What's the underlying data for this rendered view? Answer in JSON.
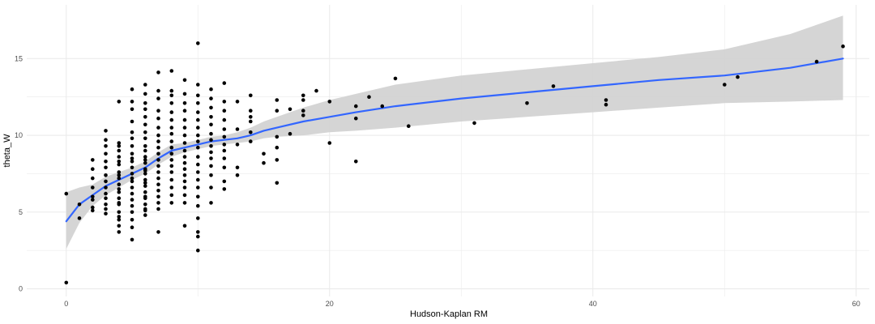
{
  "chart_data": {
    "type": "scatter",
    "xlabel": "Hudson-Kaplan RM",
    "ylabel": "theta_W",
    "xlim": [
      -3,
      61
    ],
    "ylim": [
      -0.5,
      18.5
    ],
    "x_ticks": [
      0,
      20,
      40,
      60
    ],
    "y_ticks": [
      0,
      5,
      10,
      15
    ],
    "x_tick_labels": [
      "0",
      "20",
      "40",
      "60"
    ],
    "y_tick_labels": [
      "0",
      "5",
      "10",
      "15"
    ],
    "grid": true,
    "legend": "none",
    "colors": {
      "points": "#000000",
      "smooth_line": "#3366ff",
      "confidence_band": "#d3d3d3",
      "grid": "#ebebeb"
    },
    "points": [
      [
        0,
        6.2
      ],
      [
        0,
        0.4
      ],
      [
        1,
        5.5
      ],
      [
        1,
        4.6
      ],
      [
        2,
        8.4
      ],
      [
        2,
        7.8
      ],
      [
        2,
        7.2
      ],
      [
        2,
        6.6
      ],
      [
        2,
        6.0
      ],
      [
        2,
        5.8
      ],
      [
        2,
        5.3
      ],
      [
        2,
        5.1
      ],
      [
        3,
        10.3
      ],
      [
        3,
        9.7
      ],
      [
        3,
        9.3
      ],
      [
        3,
        8.8
      ],
      [
        3,
        8.3
      ],
      [
        3,
        7.9
      ],
      [
        3,
        7.4
      ],
      [
        3,
        7.0
      ],
      [
        3,
        6.6
      ],
      [
        3,
        6.2
      ],
      [
        3,
        5.9
      ],
      [
        3,
        5.5
      ],
      [
        3,
        5.2
      ],
      [
        3,
        4.9
      ],
      [
        4,
        9.5
      ],
      [
        4,
        9.0
      ],
      [
        4,
        8.6
      ],
      [
        4,
        8.1
      ],
      [
        4,
        7.6
      ],
      [
        4,
        7.2
      ],
      [
        4,
        6.8
      ],
      [
        4,
        6.3
      ],
      [
        4,
        5.9
      ],
      [
        4,
        5.5
      ],
      [
        4,
        5.0
      ],
      [
        4,
        4.5
      ],
      [
        4,
        4.1
      ],
      [
        4,
        3.7
      ],
      [
        4,
        12.2
      ],
      [
        4,
        9.3
      ],
      [
        4,
        8.3
      ],
      [
        4,
        7.4
      ],
      [
        4,
        6.5
      ],
      [
        4,
        5.6
      ],
      [
        4,
        4.7
      ],
      [
        5,
        13.0
      ],
      [
        5,
        12.2
      ],
      [
        5,
        11.7
      ],
      [
        5,
        10.9
      ],
      [
        5,
        10.2
      ],
      [
        5,
        9.8
      ],
      [
        5,
        9.3
      ],
      [
        5,
        8.8
      ],
      [
        5,
        8.3
      ],
      [
        5,
        7.9
      ],
      [
        5,
        7.5
      ],
      [
        5,
        7.0
      ],
      [
        5,
        6.6
      ],
      [
        5,
        6.2
      ],
      [
        5,
        5.8
      ],
      [
        5,
        5.4
      ],
      [
        5,
        5.0
      ],
      [
        5,
        4.5
      ],
      [
        5,
        4.0
      ],
      [
        5,
        3.2
      ],
      [
        5,
        8.5
      ],
      [
        5,
        7.2
      ],
      [
        6,
        13.3
      ],
      [
        6,
        12.7
      ],
      [
        6,
        12.1
      ],
      [
        6,
        11.7
      ],
      [
        6,
        11.2
      ],
      [
        6,
        10.7
      ],
      [
        6,
        10.2
      ],
      [
        6,
        9.8
      ],
      [
        6,
        9.3
      ],
      [
        6,
        9.0
      ],
      [
        6,
        8.6
      ],
      [
        6,
        8.2
      ],
      [
        6,
        7.8
      ],
      [
        6,
        7.5
      ],
      [
        6,
        7.1
      ],
      [
        6,
        6.7
      ],
      [
        6,
        6.3
      ],
      [
        6,
        5.9
      ],
      [
        6,
        5.5
      ],
      [
        6,
        5.1
      ],
      [
        6,
        4.8
      ],
      [
        6,
        8.4
      ],
      [
        6,
        7.7
      ],
      [
        6,
        6.9
      ],
      [
        6,
        6.0
      ],
      [
        6,
        5.2
      ],
      [
        7,
        14.1
      ],
      [
        7,
        12.9
      ],
      [
        7,
        12.4
      ],
      [
        7,
        11.6
      ],
      [
        7,
        11.1
      ],
      [
        7,
        10.5
      ],
      [
        7,
        10.0
      ],
      [
        7,
        9.6
      ],
      [
        7,
        9.2
      ],
      [
        7,
        8.8
      ],
      [
        7,
        8.4
      ],
      [
        7,
        8.0
      ],
      [
        7,
        7.6
      ],
      [
        7,
        7.2
      ],
      [
        7,
        6.8
      ],
      [
        7,
        6.4
      ],
      [
        7,
        6.0
      ],
      [
        7,
        5.6
      ],
      [
        7,
        5.2
      ],
      [
        7,
        3.7
      ],
      [
        8,
        14.2
      ],
      [
        8,
        12.9
      ],
      [
        8,
        12.6
      ],
      [
        8,
        12.1
      ],
      [
        8,
        11.5
      ],
      [
        8,
        11.0
      ],
      [
        8,
        10.5
      ],
      [
        8,
        10.1
      ],
      [
        8,
        9.6
      ],
      [
        8,
        9.2
      ],
      [
        8,
        8.8
      ],
      [
        8,
        8.4
      ],
      [
        8,
        8.0
      ],
      [
        8,
        7.6
      ],
      [
        8,
        7.1
      ],
      [
        8,
        6.6
      ],
      [
        8,
        6.1
      ],
      [
        8,
        5.6
      ],
      [
        9,
        13.6
      ],
      [
        9,
        12.7
      ],
      [
        9,
        12.1
      ],
      [
        9,
        11.6
      ],
      [
        9,
        11.0
      ],
      [
        9,
        10.5
      ],
      [
        9,
        10.0
      ],
      [
        9,
        9.5
      ],
      [
        9,
        9.0
      ],
      [
        9,
        8.6
      ],
      [
        9,
        8.2
      ],
      [
        9,
        7.8
      ],
      [
        9,
        7.4
      ],
      [
        9,
        7.0
      ],
      [
        9,
        6.6
      ],
      [
        9,
        6.1
      ],
      [
        9,
        5.6
      ],
      [
        9,
        4.1
      ],
      [
        10,
        16.0
      ],
      [
        10,
        13.3
      ],
      [
        10,
        12.6
      ],
      [
        10,
        12.1
      ],
      [
        10,
        11.5
      ],
      [
        10,
        11.0
      ],
      [
        10,
        10.5
      ],
      [
        10,
        10.0
      ],
      [
        10,
        9.6
      ],
      [
        10,
        9.2
      ],
      [
        10,
        8.6
      ],
      [
        10,
        8.1
      ],
      [
        10,
        7.6
      ],
      [
        10,
        7.1
      ],
      [
        10,
        6.6
      ],
      [
        10,
        6.0
      ],
      [
        10,
        5.4
      ],
      [
        10,
        4.6
      ],
      [
        10,
        3.7
      ],
      [
        10,
        3.4
      ],
      [
        10,
        2.5
      ],
      [
        11,
        13.0
      ],
      [
        11,
        12.4
      ],
      [
        11,
        11.8
      ],
      [
        11,
        11.2
      ],
      [
        11,
        10.7
      ],
      [
        11,
        10.1
      ],
      [
        11,
        9.7
      ],
      [
        11,
        9.3
      ],
      [
        11,
        8.9
      ],
      [
        11,
        8.5
      ],
      [
        11,
        8.0
      ],
      [
        11,
        7.4
      ],
      [
        11,
        6.6
      ],
      [
        11,
        5.6
      ],
      [
        12,
        13.4
      ],
      [
        12,
        12.2
      ],
      [
        12,
        11.6
      ],
      [
        12,
        11.0
      ],
      [
        12,
        10.4
      ],
      [
        12,
        9.9
      ],
      [
        12,
        9.4
      ],
      [
        12,
        9.0
      ],
      [
        12,
        8.5
      ],
      [
        12,
        7.9
      ],
      [
        12,
        7.0
      ],
      [
        12,
        6.5
      ],
      [
        13,
        12.2
      ],
      [
        13,
        10.4
      ],
      [
        13,
        9.4
      ],
      [
        13,
        7.9
      ],
      [
        13,
        7.4
      ],
      [
        14,
        12.6
      ],
      [
        14,
        11.6
      ],
      [
        14,
        11.2
      ],
      [
        14,
        10.9
      ],
      [
        14,
        10.2
      ],
      [
        14,
        9.6
      ],
      [
        15,
        8.8
      ],
      [
        15,
        8.2
      ],
      [
        16,
        12.3
      ],
      [
        16,
        11.6
      ],
      [
        16,
        9.9
      ],
      [
        16,
        9.2
      ],
      [
        16,
        8.4
      ],
      [
        16,
        6.9
      ],
      [
        17,
        11.7
      ],
      [
        17,
        10.1
      ],
      [
        18,
        12.6
      ],
      [
        18,
        12.3
      ],
      [
        18,
        11.6
      ],
      [
        18,
        11.3
      ],
      [
        19,
        12.9
      ],
      [
        20,
        12.2
      ],
      [
        20,
        9.5
      ],
      [
        22,
        11.9
      ],
      [
        22,
        11.1
      ],
      [
        22,
        8.3
      ],
      [
        23,
        12.5
      ],
      [
        24,
        11.9
      ],
      [
        25,
        13.7
      ],
      [
        26,
        10.6
      ],
      [
        31,
        10.8
      ],
      [
        35,
        12.1
      ],
      [
        37,
        13.2
      ],
      [
        41,
        12.3
      ],
      [
        41,
        12.0
      ],
      [
        50,
        13.3
      ],
      [
        51,
        13.8
      ],
      [
        57,
        14.8
      ],
      [
        59,
        15.8
      ]
    ],
    "smooth_line": {
      "x": [
        0,
        1,
        2,
        3,
        4,
        5,
        6,
        7,
        8,
        9,
        10,
        11,
        12,
        13,
        14,
        15,
        16,
        18,
        20,
        22,
        25,
        30,
        35,
        40,
        45,
        50,
        55,
        59
      ],
      "y": [
        4.4,
        5.5,
        6.1,
        6.7,
        7.1,
        7.5,
        7.9,
        8.5,
        9.0,
        9.2,
        9.4,
        9.6,
        9.7,
        9.8,
        10.0,
        10.3,
        10.5,
        10.9,
        11.2,
        11.5,
        11.9,
        12.4,
        12.8,
        13.2,
        13.6,
        13.9,
        14.4,
        15.0
      ]
    },
    "confidence_band": {
      "x": [
        0,
        1,
        2,
        3,
        4,
        5,
        6,
        7,
        8,
        9,
        10,
        11,
        12,
        13,
        14,
        15,
        16,
        18,
        20,
        22,
        25,
        30,
        35,
        40,
        45,
        50,
        55,
        59
      ],
      "lower": [
        2.6,
        4.3,
        5.4,
        6.1,
        6.6,
        7.1,
        7.5,
        8.1,
        8.6,
        8.9,
        9.1,
        9.3,
        9.4,
        9.5,
        9.6,
        9.8,
        9.9,
        10.0,
        10.2,
        10.3,
        10.5,
        10.9,
        11.2,
        11.5,
        11.8,
        12.1,
        12.2,
        12.3
      ],
      "upper": [
        6.3,
        6.6,
        6.8,
        7.3,
        7.6,
        7.9,
        8.3,
        8.9,
        9.4,
        9.5,
        9.7,
        9.9,
        10.0,
        10.2,
        10.5,
        10.9,
        11.2,
        11.8,
        12.3,
        12.7,
        13.3,
        13.9,
        14.3,
        14.7,
        15.1,
        15.6,
        16.6,
        17.8
      ]
    }
  }
}
